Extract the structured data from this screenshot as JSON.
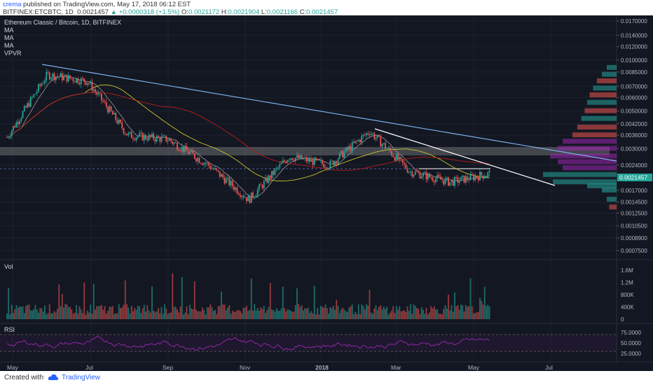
{
  "header": {
    "user": "crema",
    "published": "published on TradingView.com, May 17, 2018 06:12 EST",
    "symbol": "BITFINEX:ETCBTC, 1D",
    "last": "0.0021457",
    "change": "▲ +0.0000318 (+1.5%)",
    "o_label": "O:",
    "o": "0.0021172",
    "h_label": "H:",
    "h": "0.0021904",
    "l_label": "L:",
    "l": "0.0021166",
    "c_label": "C:",
    "c": "0.0021457"
  },
  "legend": {
    "title": "Ethereum Classic / Bitcoin, 1D, BITFINEX",
    "ma1": "MA",
    "ma2": "MA",
    "ma3": "MA",
    "vpvr": "VPVR"
  },
  "panes": {
    "vol_label": "Vol",
    "rsi_label": "RSI"
  },
  "footer": {
    "created": "Created with",
    "brand": "TradingView"
  },
  "colors": {
    "background": "#131722",
    "up": "#26a69a",
    "down": "#ef5350",
    "trendline": "#7fb0e8",
    "ma_yellow": "#c9c12a",
    "ma_red": "#b71c1c",
    "ma_gray": "#8c8c8c",
    "rsi": "#9c27b0",
    "price_tag": "#26a69a"
  },
  "chart_data": {
    "type": "candlestick",
    "log_scale": true,
    "price_axis_ticks": [
      "0.0170000",
      "0.0140000",
      "0.0120000",
      "0.0100000",
      "0.0085000",
      "0.0070000",
      "0.0060000",
      "0.0050000",
      "0.0042000",
      "0.0036000",
      "0.0030000",
      "0.0024000",
      "0.0020000",
      "0.0017000",
      "0.0014500",
      "0.0012500",
      "0.0010500",
      "0.0008900",
      "0.0007500"
    ],
    "price_axis_values": [
      0.017,
      0.014,
      0.012,
      0.01,
      0.0085,
      0.007,
      0.006,
      0.005,
      0.0042,
      0.0036,
      0.003,
      0.0024,
      0.002,
      0.0017,
      0.00145,
      0.00125,
      0.00105,
      0.00089,
      0.00075
    ],
    "current_price_label": "0.0021457",
    "current_price": 0.0021457,
    "x_axis_labels": [
      "May",
      "Jul",
      "Sep",
      "Nov",
      "2018",
      "Mar",
      "May",
      "Jul"
    ],
    "price_path_approx": [
      {
        "date": "May 2017",
        "price": 0.0035
      },
      {
        "date": "Jun 2017",
        "price": 0.0082
      },
      {
        "date": "Jul 2017",
        "price": 0.0075
      },
      {
        "date": "Aug 2017",
        "price": 0.0036
      },
      {
        "date": "Sep 2017",
        "price": 0.0034
      },
      {
        "date": "Oct 2017",
        "price": 0.0024
      },
      {
        "date": "Nov 2017",
        "price": 0.0015
      },
      {
        "date": "Dec 2017",
        "price": 0.0027
      },
      {
        "date": "Jan 2018",
        "price": 0.0024
      },
      {
        "date": "Feb 2018",
        "price": 0.0038
      },
      {
        "date": "Mar 2018",
        "price": 0.0022
      },
      {
        "date": "Apr 2018",
        "price": 0.0019
      },
      {
        "date": "May 2018",
        "price": 0.0021457
      }
    ],
    "volume_axis_ticks": [
      "1.6M",
      "1.2M",
      "800K",
      "400K",
      "0"
    ],
    "volume_axis_values": [
      1600000,
      1200000,
      800000,
      400000,
      0
    ],
    "rsi_axis_ticks": [
      "75.0000",
      "50.0000",
      "25.0000"
    ],
    "rsi_axis_values": [
      75,
      50,
      25
    ],
    "annotations": [
      "descending trendline from Jun 2017 high",
      "descending trendline from Feb 2018 high",
      "horizontal zone near 0.0030"
    ]
  }
}
